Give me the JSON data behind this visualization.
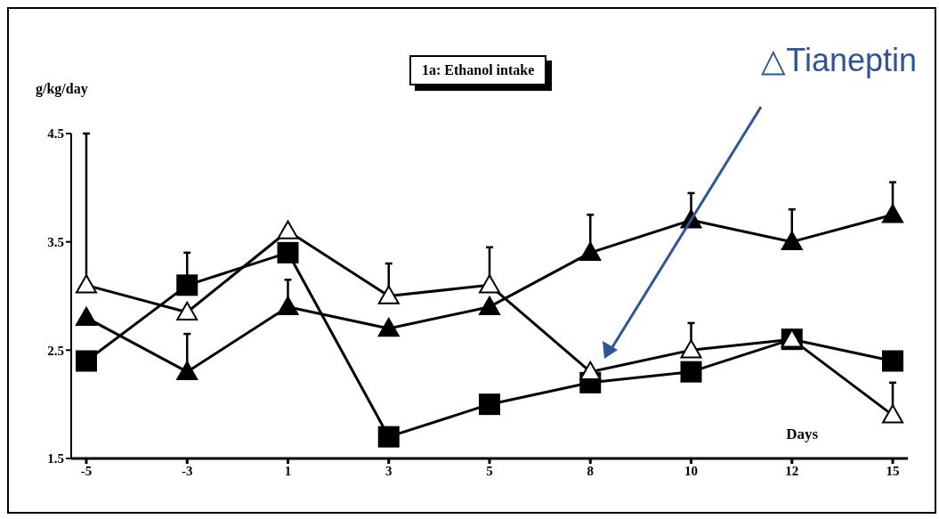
{
  "chart_data": {
    "type": "line",
    "title": "1a: Ethanol intake",
    "xlabel": "Days",
    "ylabel": "g/kg/day",
    "categories": [
      "-5",
      "-3",
      "1",
      "3",
      "5",
      "8",
      "10",
      "12",
      "15"
    ],
    "ylim": [
      1.5,
      4.5
    ],
    "yticks": [
      1.5,
      2.5,
      3.5,
      4.5
    ],
    "grid": false,
    "legend": false,
    "annotations": [
      "△Tianeptin"
    ],
    "series": [
      {
        "color": "#ffffff",
        "marker": "triangle",
        "values": [
          3.1,
          2.85,
          3.6,
          3.0,
          3.1,
          2.3,
          2.5,
          2.6,
          1.9
        ],
        "errors": [
          [
            3.1,
            4.5
          ],
          null,
          null,
          [
            3.0,
            3.3
          ],
          [
            3.1,
            3.45
          ],
          null,
          [
            2.5,
            2.75
          ],
          null,
          [
            1.9,
            2.2
          ]
        ]
      },
      {
        "color": "#000000",
        "marker": "triangle",
        "values": [
          2.8,
          2.3,
          2.9,
          2.7,
          2.9,
          3.4,
          3.7,
          3.5,
          3.75
        ],
        "errors": [
          null,
          [
            2.3,
            2.65
          ],
          [
            2.9,
            3.15
          ],
          null,
          null,
          [
            3.4,
            3.75
          ],
          [
            3.7,
            3.95
          ],
          [
            3.5,
            3.8
          ],
          [
            3.75,
            4.05
          ]
        ]
      },
      {
        "color": "#000000",
        "marker": "square",
        "values": [
          2.4,
          3.1,
          3.4,
          1.7,
          2.0,
          2.2,
          2.3,
          2.6,
          2.4
        ],
        "errors": [
          null,
          [
            3.1,
            3.4
          ],
          null,
          null,
          null,
          null,
          null,
          null,
          null
        ]
      }
    ]
  }
}
